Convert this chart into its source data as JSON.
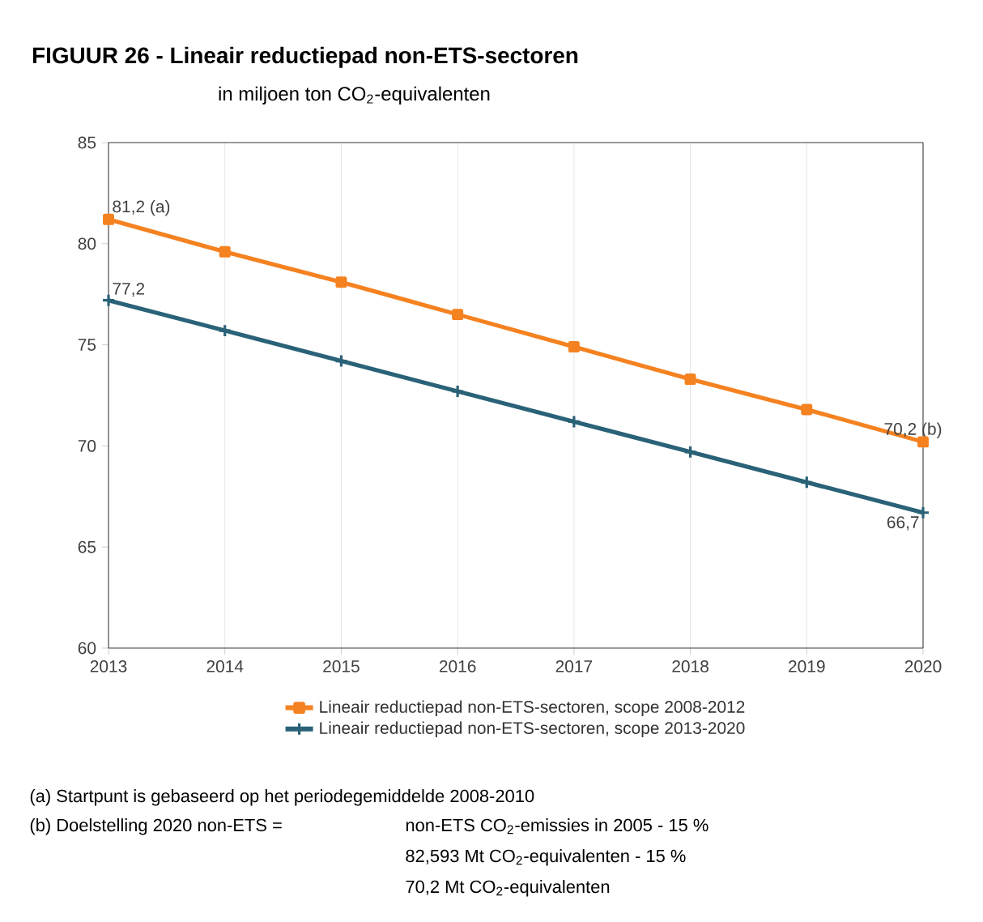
{
  "chart_data": {
    "type": "line",
    "title": "FIGUUR 26 - Lineair reductiepad non-ETS-sectoren",
    "subtitle": "in miljoen ton CO$_{2}$-equivalenten",
    "x": [
      2013,
      2014,
      2015,
      2016,
      2017,
      2018,
      2019,
      2020
    ],
    "xlim": [
      2013,
      2020
    ],
    "xticks": [
      2013,
      2014,
      2015,
      2016,
      2017,
      2018,
      2019,
      2020
    ],
    "ylim": [
      60,
      85
    ],
    "yticks": [
      60,
      65,
      70,
      75,
      80,
      85
    ],
    "grid": "x",
    "legend": "bottom",
    "series": [
      {
        "name": "Lineair reductiepad non-ETS-sectoren, scope 2008-2012",
        "color": "#f58220",
        "marker": "square",
        "values": [
          81.2,
          79.6,
          78.1,
          76.5,
          74.9,
          73.3,
          71.8,
          70.2
        ],
        "value_labels": [
          "81,2 (a)",
          null,
          null,
          null,
          null,
          null,
          null,
          "70,2 (b)"
        ]
      },
      {
        "name": "Lineair reductiepad non-ETS-sectoren, scope 2013-2020",
        "color": "#2a6278",
        "marker": "cross",
        "values": [
          77.2,
          75.7,
          74.2,
          72.7,
          71.2,
          69.7,
          68.2,
          66.7
        ],
        "value_labels": [
          "77,2",
          null,
          null,
          null,
          null,
          null,
          null,
          "66,7"
        ]
      }
    ],
    "annotations": [
      "(a)  Startpunt is gebaseerd op het periodegemiddelde 2008-2010",
      "(b)  Doelstelling 2020 non-ETS =",
      "non-ETS CO$_{2}$-emissies in 2005 - 15 %",
      "82,593 Mt CO$_{2}$-equivalenten - 15 %",
      "70,2 Mt CO$_{2}$-equivalenten"
    ]
  }
}
